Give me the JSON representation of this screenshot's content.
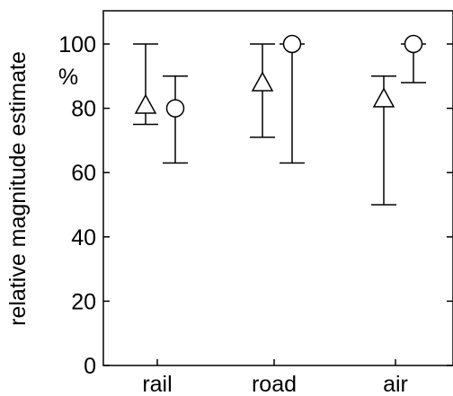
{
  "chart_data": {
    "type": "errorbar",
    "ylabel": "relative magnitude estimate",
    "unit_label": "%",
    "ylim": [
      0,
      110
    ],
    "yticks": [
      0,
      20,
      40,
      60,
      80,
      100
    ],
    "ytick_labels": [
      "0",
      "20",
      "40",
      "60",
      "80",
      "100"
    ],
    "categories": [
      "rail",
      "road",
      "air"
    ],
    "grid": false,
    "series": [
      {
        "marker": "triangle",
        "points": [
          {
            "category": "rail",
            "mean": 81,
            "low": 75,
            "high": 100
          },
          {
            "category": "road",
            "mean": 88,
            "low": 71,
            "high": 100
          },
          {
            "category": "air",
            "mean": 83,
            "low": 50,
            "high": 90
          }
        ]
      },
      {
        "marker": "circle",
        "points": [
          {
            "category": "rail",
            "mean": 80,
            "low": 63,
            "high": 90
          },
          {
            "category": "road",
            "mean": 100,
            "low": 63,
            "high": 100
          },
          {
            "category": "air",
            "mean": 100,
            "low": 88,
            "high": 100
          }
        ]
      }
    ]
  }
}
